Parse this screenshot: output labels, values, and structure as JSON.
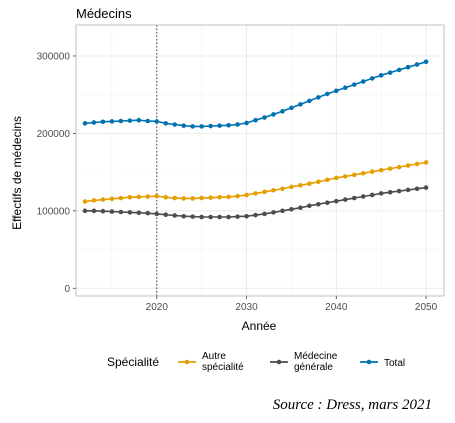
{
  "chart_data": {
    "type": "line",
    "title": "Médecins",
    "xlabel": "Année",
    "ylabel": "Effectifs de médecins",
    "xlim": [
      2011,
      2052
    ],
    "ylim": [
      -10000,
      340000
    ],
    "x_ticks": [
      2020,
      2030,
      2040,
      2050
    ],
    "x_tick_labels": [
      "2020",
      "2030",
      "2040",
      "2050"
    ],
    "y_ticks": [
      0,
      100000,
      200000,
      300000
    ],
    "y_tick_labels": [
      "0",
      "100000",
      "200000",
      "300000"
    ],
    "reference_line_x": 2020,
    "grid": true,
    "legend_position": "bottom",
    "legend_title": "Spécialité",
    "x": [
      2012,
      2013,
      2014,
      2015,
      2016,
      2017,
      2018,
      2019,
      2020,
      2021,
      2022,
      2023,
      2024,
      2025,
      2026,
      2027,
      2028,
      2029,
      2030,
      2031,
      2032,
      2033,
      2034,
      2035,
      2036,
      2037,
      2038,
      2039,
      2040,
      2041,
      2042,
      2043,
      2044,
      2045,
      2046,
      2047,
      2048,
      2049,
      2050
    ],
    "series": [
      {
        "name": "Autre spécialité",
        "label_lines": [
          "Autre",
          "spécialité"
        ],
        "color": "#E69F00",
        "values": [
          112000,
          113500,
          114500,
          115500,
          116500,
          117500,
          118000,
          118500,
          119000,
          117500,
          116500,
          116000,
          116000,
          116500,
          117000,
          117500,
          118000,
          119000,
          120500,
          122500,
          124500,
          126500,
          128500,
          131000,
          133000,
          135000,
          137500,
          140000,
          142500,
          144500,
          146500,
          148500,
          150500,
          152500,
          154500,
          156500,
          158500,
          160500,
          162500
        ]
      },
      {
        "name": "Médecine générale",
        "label_lines": [
          "Médecine",
          "générale"
        ],
        "color": "#4D4D4D",
        "values": [
          100000,
          100000,
          99500,
          99000,
          98500,
          98000,
          97500,
          97000,
          96000,
          95000,
          94000,
          93000,
          92500,
          92000,
          92000,
          92000,
          92000,
          92500,
          93000,
          94500,
          96000,
          98000,
          100000,
          102000,
          104000,
          106500,
          108500,
          110500,
          112500,
          114500,
          116500,
          118500,
          120500,
          122500,
          124000,
          125500,
          127000,
          128500,
          130000
        ]
      },
      {
        "name": "Total",
        "label_lines": [
          "Total"
        ],
        "color": "#0072B2",
        "values": [
          213000,
          214000,
          215000,
          215500,
          216000,
          216500,
          217000,
          216000,
          215500,
          213000,
          211500,
          210000,
          209000,
          209000,
          209500,
          210000,
          210500,
          211500,
          213500,
          217000,
          220500,
          224500,
          228500,
          233000,
          237500,
          242000,
          246500,
          251000,
          255000,
          259000,
          263000,
          267000,
          271000,
          275000,
          278500,
          282000,
          285500,
          289000,
          292500
        ]
      }
    ]
  },
  "source_text": "Source : Dress, mars 2021"
}
